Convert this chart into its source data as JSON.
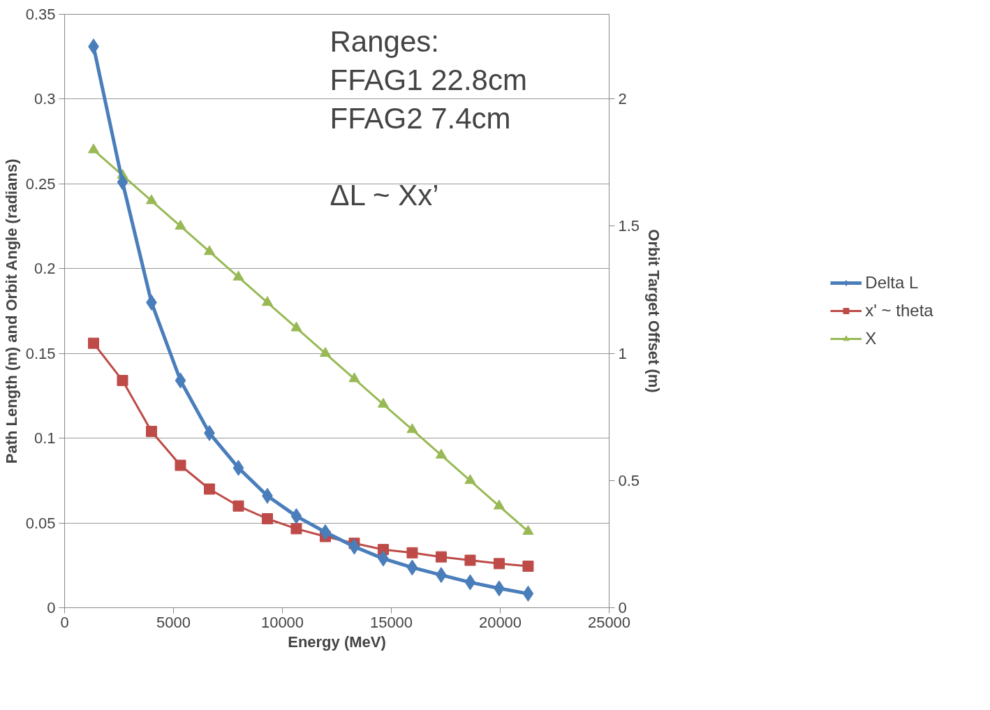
{
  "chart_data": {
    "type": "line",
    "xlabel": "Energy (MeV)",
    "ylabel": "Path Length (m) and Orbit Angle (radians)",
    "y2label": "Orbit Target Offset (m)",
    "x": [
      1330,
      2660,
      3990,
      5320,
      6650,
      7980,
      9310,
      10640,
      11970,
      13300,
      14630,
      15960,
      17290,
      18620,
      19950,
      21280
    ],
    "series": [
      {
        "name": "Delta L",
        "color": "#4a7ebb",
        "marker": "diamond",
        "values": [
          0.331,
          0.251,
          0.18,
          0.134,
          0.103,
          0.0825,
          0.066,
          0.054,
          0.0446,
          0.036,
          0.029,
          0.0237,
          0.0193,
          0.015,
          0.0114,
          0.0083
        ]
      },
      {
        "name": "x' ~ theta",
        "color": "#be4b48",
        "marker": "square",
        "values": [
          0.156,
          0.134,
          0.104,
          0.084,
          0.07,
          0.06,
          0.0525,
          0.0466,
          0.042,
          0.038,
          0.0343,
          0.0324,
          0.03,
          0.028,
          0.026,
          0.0245
        ]
      },
      {
        "name": "X",
        "color": "#98b954",
        "marker": "triangle",
        "axis": "y2",
        "values": [
          1.8,
          1.7,
          1.6,
          1.5,
          1.4,
          1.3,
          1.2,
          1.1,
          1.0,
          0.9,
          0.8,
          0.7,
          0.6,
          0.5,
          0.4,
          0.3
        ]
      }
    ],
    "xlim": [
      0,
      25000
    ],
    "xticks": [
      0,
      5000,
      10000,
      15000,
      20000,
      25000
    ],
    "ylim": [
      0,
      0.35
    ],
    "yticks": [
      0,
      0.05,
      0.1,
      0.15,
      0.2,
      0.25,
      0.3,
      0.35
    ],
    "y2lim": [
      0,
      2.333
    ],
    "y2ticks": [
      0,
      0.5,
      1,
      1.5,
      2
    ],
    "grid": "y",
    "legend": "right",
    "line_style": "solid",
    "annotations": [
      "Ranges:",
      "FFAG1 22.8cm",
      "FFAG2 7.4cm",
      "ΔL ~ Xx’"
    ]
  }
}
